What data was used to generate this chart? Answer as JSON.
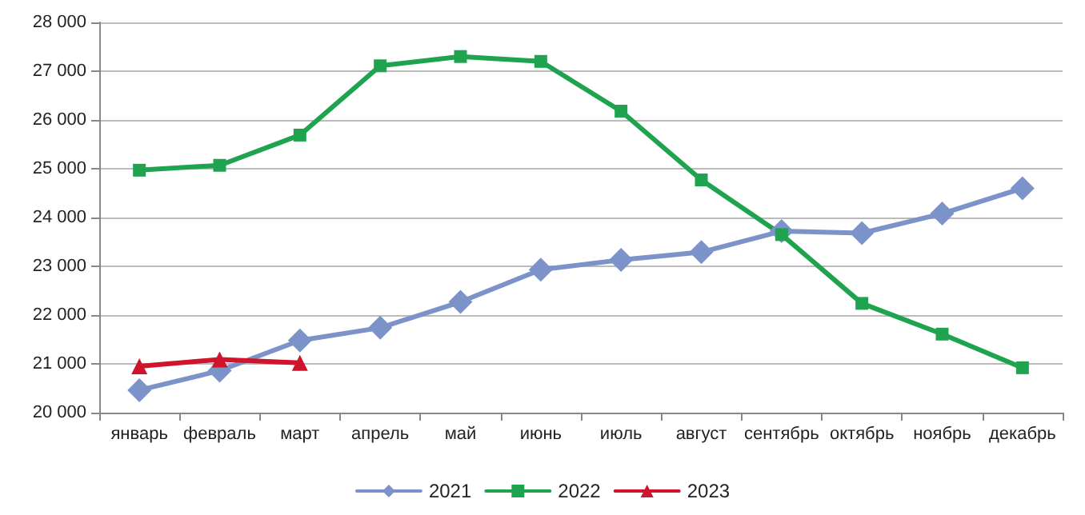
{
  "chart_data": {
    "type": "line",
    "categories": [
      "январь",
      "февраль",
      "март",
      "апрель",
      "май",
      "июнь",
      "июль",
      "август",
      "сентябрь",
      "октябрь",
      "ноябрь",
      "декабрь"
    ],
    "series": [
      {
        "name": "2021",
        "color": "#7b93c9",
        "marker": "diamond",
        "values": [
          20460,
          20860,
          21480,
          21740,
          22270,
          22930,
          23130,
          23290,
          23720,
          23680,
          24080,
          24600
        ]
      },
      {
        "name": "2022",
        "color": "#1fa34f",
        "marker": "square",
        "values": [
          24970,
          25070,
          25690,
          27110,
          27300,
          27200,
          26180,
          24770,
          23650,
          22240,
          21610,
          20920
        ]
      },
      {
        "name": "2023",
        "color": "#d0142c",
        "marker": "triangle",
        "values": [
          20950,
          21090,
          21020,
          null,
          null,
          null,
          null,
          null,
          null,
          null,
          null,
          null
        ]
      }
    ],
    "ylim": [
      20000,
      28000
    ],
    "yticks": [
      {
        "value": 20000,
        "label": "20 000"
      },
      {
        "value": 21000,
        "label": "21 000"
      },
      {
        "value": 22000,
        "label": "22 000"
      },
      {
        "value": 23000,
        "label": "23 000"
      },
      {
        "value": 24000,
        "label": "24 000"
      },
      {
        "value": 25000,
        "label": "25 000"
      },
      {
        "value": 26000,
        "label": "26 000"
      },
      {
        "value": 27000,
        "label": "27 000"
      },
      {
        "value": 28000,
        "label": "28 000"
      }
    ],
    "grid": "y",
    "legend": "bottom",
    "line_style": "solid"
  }
}
